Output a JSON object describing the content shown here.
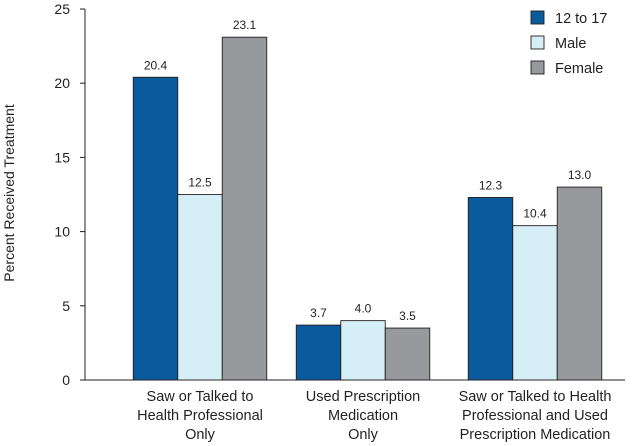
{
  "chart_data": {
    "type": "bar",
    "ylabel": "Percent Received Treatment",
    "ylim": [
      0,
      25
    ],
    "yticks": [
      0,
      5,
      10,
      15,
      20,
      25
    ],
    "categories": [
      [
        "Saw or Talked to",
        "Health Professional",
        "Only"
      ],
      [
        "Used Prescription",
        "Medication",
        "Only"
      ],
      [
        "Saw or Talked to Health",
        "Professional and Used",
        "Prescription Medication"
      ]
    ],
    "series": [
      {
        "name": "12 to 17",
        "values": [
          20.4,
          3.7,
          12.3
        ],
        "labels": [
          "20.4",
          "3.7",
          "12.3"
        ],
        "color": "#0a5a9e"
      },
      {
        "name": "Male",
        "values": [
          12.5,
          4.0,
          10.4
        ],
        "labels": [
          "12.5",
          "4.0",
          "10.4"
        ],
        "color": "#d6eef5"
      },
      {
        "name": "Female",
        "values": [
          23.1,
          3.5,
          13.0
        ],
        "labels": [
          "23.1",
          "3.5",
          "13.0"
        ],
        "color": "#97999c"
      }
    ],
    "legend_position": "top-right",
    "grid": false
  }
}
